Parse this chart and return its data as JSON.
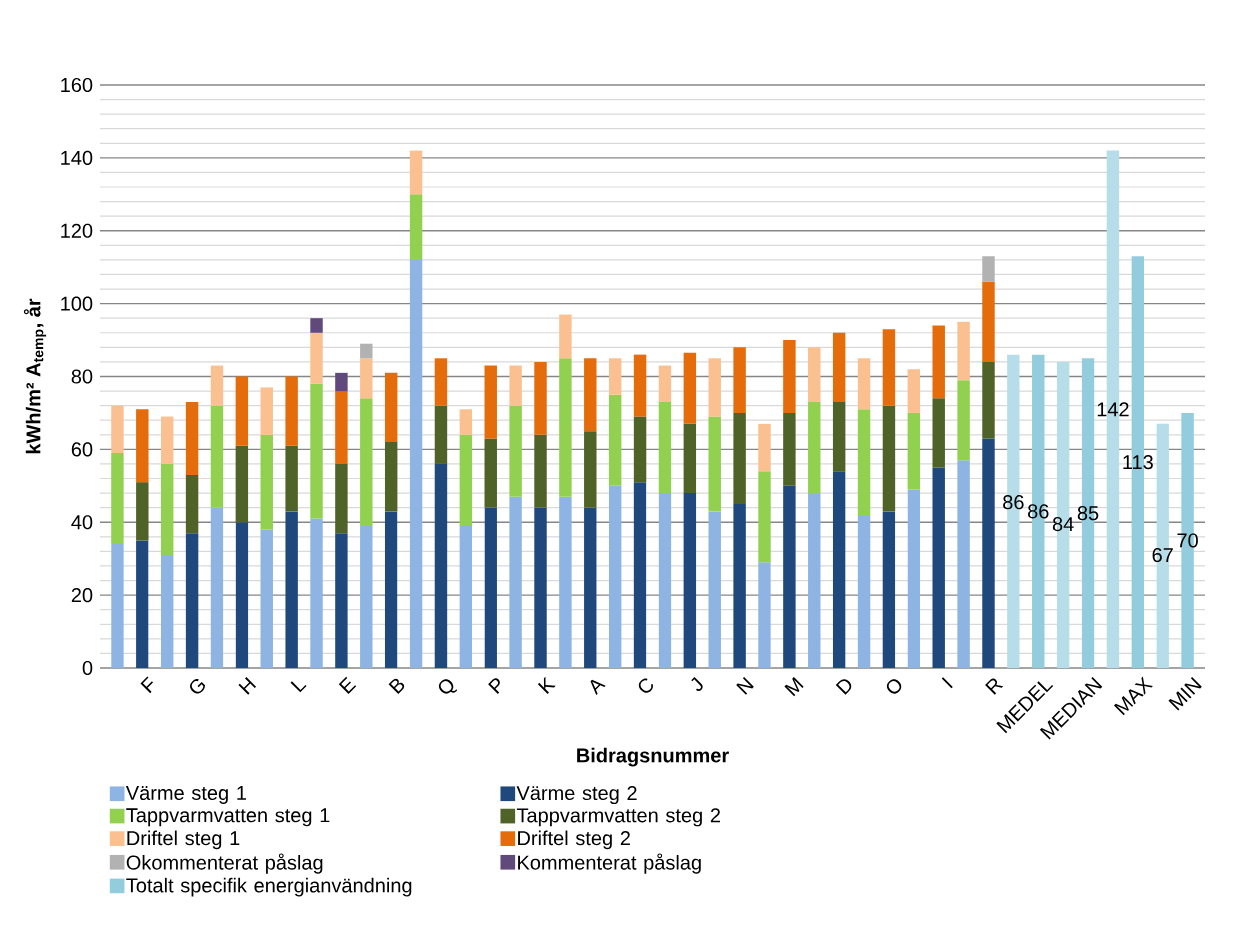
{
  "chart_data": {
    "type": "bar",
    "stacked": true,
    "xlabel": "Bidragsnummer",
    "ylabel": "kWh/m² A$_{temp}$, år",
    "categories": [
      null,
      "F",
      null,
      "G",
      null,
      "H",
      null,
      "L",
      null,
      "E",
      null,
      "B",
      null,
      "Q",
      null,
      "P",
      null,
      "K",
      null,
      "A",
      null,
      "C",
      null,
      "J",
      null,
      "N",
      null,
      "M",
      null,
      "D",
      null,
      "O",
      null,
      "I",
      null,
      "R",
      null,
      "MEDEL",
      null,
      "MEDIAN",
      null,
      "MAX",
      null,
      "MIN"
    ],
    "series": [
      {
        "name": "Värme steg 1",
        "color": "#8eb4e3",
        "values": [
          34,
          null,
          31,
          null,
          44,
          null,
          38,
          null,
          41,
          null,
          39,
          null,
          112,
          null,
          39,
          null,
          47,
          null,
          47,
          null,
          50,
          null,
          48,
          null,
          43,
          null,
          29,
          null,
          48,
          null,
          42,
          null,
          49,
          null,
          57,
          null,
          null,
          null,
          null,
          null,
          null,
          null,
          null,
          null
        ]
      },
      {
        "name": "Värme steg 2",
        "color": "#1f497d",
        "values": [
          null,
          35,
          null,
          37,
          null,
          40,
          null,
          43,
          null,
          37,
          null,
          43,
          null,
          56,
          null,
          44,
          null,
          44,
          null,
          44,
          null,
          51,
          null,
          48,
          null,
          45,
          null,
          50,
          null,
          54,
          null,
          43,
          null,
          55,
          null,
          63,
          null,
          null,
          null,
          null,
          null,
          null,
          null,
          null
        ]
      },
      {
        "name": "Tappvarmvatten steg 1",
        "color": "#92d050",
        "values": [
          25,
          null,
          25,
          null,
          28,
          null,
          26,
          null,
          37,
          null,
          35,
          null,
          18,
          null,
          25,
          null,
          25,
          null,
          38,
          null,
          25,
          null,
          25,
          null,
          26,
          null,
          25,
          null,
          25,
          null,
          29,
          null,
          21,
          null,
          22,
          null,
          null,
          null,
          null,
          null,
          null,
          null,
          null,
          null
        ]
      },
      {
        "name": "Tappvarmvatten steg 2",
        "color": "#4f6228",
        "values": [
          null,
          16,
          null,
          16,
          null,
          21,
          null,
          18,
          null,
          19,
          null,
          19,
          null,
          16,
          null,
          19,
          null,
          20,
          null,
          21,
          null,
          18,
          null,
          19,
          null,
          25,
          null,
          20,
          null,
          19,
          null,
          29,
          null,
          19,
          null,
          21,
          null,
          null,
          null,
          null,
          null,
          null,
          null,
          null
        ]
      },
      {
        "name": "Driftel steg 1",
        "color": "#fac090",
        "values": [
          13,
          null,
          13,
          null,
          11,
          null,
          13,
          null,
          14,
          null,
          11,
          null,
          12,
          null,
          7,
          null,
          11,
          null,
          12,
          null,
          10,
          null,
          10,
          null,
          16,
          null,
          13,
          null,
          15,
          null,
          14,
          null,
          12,
          null,
          16,
          null,
          null,
          null,
          null,
          null,
          null,
          null,
          null,
          null
        ]
      },
      {
        "name": "Driftel steg 2",
        "color": "#e46c0a",
        "values": [
          null,
          20,
          null,
          20,
          null,
          19,
          null,
          19,
          null,
          20,
          null,
          19,
          null,
          13,
          null,
          20,
          null,
          20,
          null,
          20,
          null,
          17,
          null,
          19.5,
          null,
          18,
          null,
          20,
          null,
          19,
          null,
          21,
          null,
          20,
          null,
          22,
          null,
          null,
          null,
          null,
          null,
          null,
          null,
          null
        ]
      },
      {
        "name": "Okommenterat påslag",
        "color": "#b2b2b2",
        "values": [
          null,
          null,
          null,
          null,
          null,
          null,
          null,
          null,
          null,
          null,
          4,
          null,
          null,
          null,
          null,
          null,
          null,
          null,
          null,
          null,
          null,
          null,
          null,
          null,
          null,
          null,
          null,
          null,
          null,
          null,
          null,
          null,
          null,
          null,
          null,
          7,
          null,
          null,
          null,
          null,
          null,
          null,
          null,
          null
        ]
      },
      {
        "name": "Kommenterat påslag",
        "color": "#604a7b",
        "values": [
          null,
          null,
          null,
          null,
          null,
          null,
          null,
          null,
          4,
          5,
          null,
          null,
          null,
          null,
          null,
          null,
          null,
          null,
          null,
          null,
          null,
          null,
          null,
          null,
          null,
          null,
          null,
          null,
          null,
          null,
          null,
          null,
          null,
          null,
          null,
          null,
          null,
          null,
          null,
          null,
          null,
          null,
          null,
          null
        ]
      },
      {
        "name": "Totalt specifik energianvändning",
        "color": "#93cddd",
        "colors": [
          null,
          null,
          null,
          null,
          null,
          null,
          null,
          null,
          null,
          null,
          null,
          null,
          null,
          null,
          null,
          null,
          null,
          null,
          null,
          null,
          null,
          null,
          null,
          null,
          null,
          null,
          null,
          null,
          null,
          null,
          null,
          null,
          null,
          null,
          null,
          null,
          "#b7dde8",
          "#93cddd",
          "#b7dde8",
          "#93cddd",
          "#b7dde8",
          "#93cddd",
          "#b7dde8",
          "#93cddd"
        ],
        "values": [
          null,
          null,
          null,
          null,
          null,
          null,
          null,
          null,
          null,
          null,
          null,
          null,
          null,
          null,
          null,
          null,
          null,
          null,
          null,
          null,
          null,
          null,
          null,
          null,
          null,
          null,
          null,
          null,
          null,
          null,
          null,
          null,
          null,
          null,
          null,
          null,
          86,
          86,
          84,
          85,
          142,
          113,
          67,
          70
        ],
        "value_labels": [
          null,
          null,
          null,
          null,
          null,
          null,
          null,
          null,
          null,
          null,
          null,
          null,
          null,
          null,
          null,
          null,
          null,
          null,
          null,
          null,
          null,
          null,
          null,
          null,
          null,
          null,
          null,
          null,
          null,
          null,
          null,
          null,
          null,
          null,
          null,
          null,
          "86",
          "86",
          "84",
          "85",
          "142",
          "113",
          "67",
          "70"
        ]
      }
    ],
    "ylim": [
      0,
      160
    ],
    "yticks": [
      0,
      20,
      40,
      60,
      80,
      100,
      120,
      140,
      160
    ],
    "grid": "y",
    "legend": "bottom"
  }
}
